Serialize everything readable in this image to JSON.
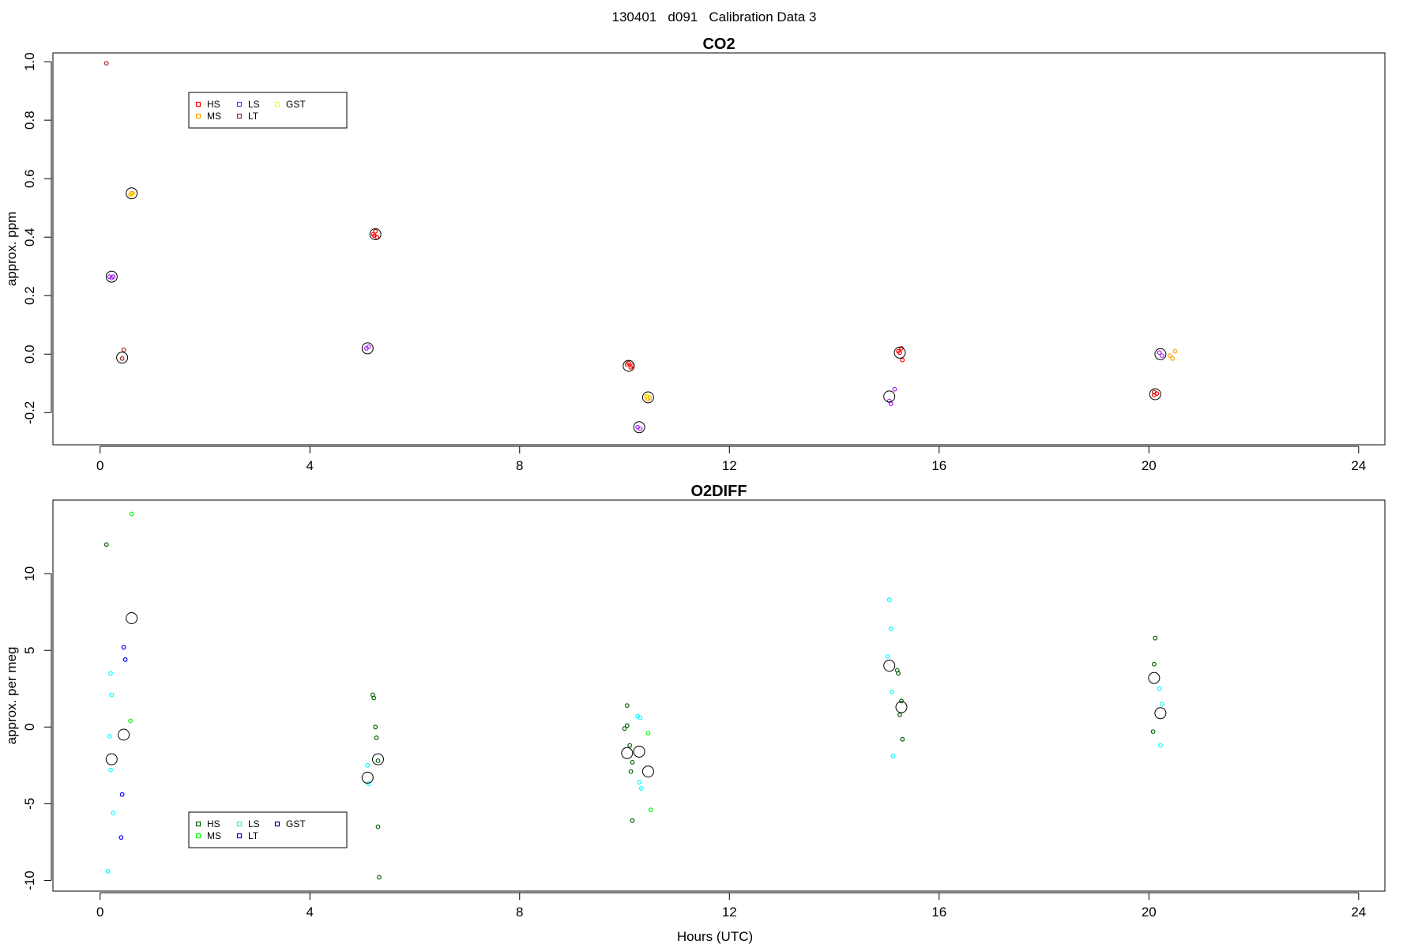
{
  "figure_title": "130401   d091   Calibration Data 3",
  "chart_data": [
    {
      "type": "scatter",
      "title": "CO2",
      "xlabel": "",
      "ylabel": "approx. ppm",
      "xlim": [
        -0.9,
        24.5
      ],
      "ylim": [
        -0.31,
        1.03
      ],
      "xticks": [
        0,
        4,
        8,
        12,
        16,
        20,
        24
      ],
      "yticks": [
        -0.2,
        0.0,
        0.2,
        0.4,
        0.6,
        0.8,
        1.0
      ],
      "ytick_labels": [
        "-0.2",
        "0.0",
        "0.2",
        "0.4",
        "0.6",
        "0.8",
        "1.0"
      ],
      "legend": {
        "placement": "top-left",
        "entries": [
          {
            "name": "HS",
            "color": "#ff0000"
          },
          {
            "name": "MS",
            "color": "#ffa500"
          },
          {
            "name": "LS",
            "color": "#a020f0"
          },
          {
            "name": "LT",
            "color": "#b22222"
          },
          {
            "name": "GST",
            "color": "#ffff00"
          }
        ]
      },
      "series": [
        {
          "name": "HS",
          "color": "#ff0000",
          "points": [
            [
              5.21,
              0.41
            ],
            [
              5.25,
              0.42
            ],
            [
              5.28,
              0.4
            ],
            [
              5.23,
              0.405
            ],
            [
              10.05,
              -0.035
            ],
            [
              10.12,
              -0.045
            ],
            [
              10.08,
              -0.03
            ],
            [
              10.15,
              -0.04
            ],
            [
              15.25,
              0.005
            ],
            [
              15.28,
              0.02
            ],
            [
              15.3,
              -0.02
            ],
            [
              15.22,
              0.01
            ],
            [
              20.1,
              -0.14
            ],
            [
              20.15,
              -0.135
            ]
          ]
        },
        {
          "name": "MS",
          "color": "#ffa500",
          "points": [
            [
              0.58,
              0.545
            ],
            [
              0.6,
              0.55
            ],
            [
              0.62,
              0.55
            ],
            [
              10.42,
              -0.145
            ],
            [
              10.45,
              -0.155
            ],
            [
              10.48,
              -0.15
            ],
            [
              20.4,
              -0.005
            ],
            [
              20.45,
              -0.015
            ],
            [
              20.5,
              0.01
            ]
          ]
        },
        {
          "name": "LS",
          "color": "#a020f0",
          "points": [
            [
              0.18,
              0.265
            ],
            [
              0.22,
              0.26
            ],
            [
              0.25,
              0.265
            ],
            [
              5.08,
              0.02
            ],
            [
              5.12,
              0.025
            ],
            [
              10.25,
              -0.25
            ],
            [
              10.3,
              -0.255
            ],
            [
              15.05,
              -0.16
            ],
            [
              15.08,
              -0.17
            ],
            [
              15.15,
              -0.12
            ],
            [
              20.2,
              0.005
            ],
            [
              20.25,
              -0.005
            ]
          ]
        },
        {
          "name": "LT",
          "color": "#b22222",
          "points": [
            [
              0.12,
              0.995
            ],
            [
              0.42,
              -0.015
            ],
            [
              0.45,
              0.015
            ],
            [
              20.1,
              -0.13
            ]
          ]
        },
        {
          "name": "GST",
          "color": "#ffff00",
          "points": [
            [
              0.6,
              0.545
            ],
            [
              10.45,
              -0.145
            ]
          ]
        },
        {
          "name": "mean",
          "color": "#000000",
          "points": [
            [
              0.22,
              0.265
            ],
            [
              0.42,
              -0.012
            ],
            [
              0.6,
              0.55
            ],
            [
              5.1,
              0.02
            ],
            [
              5.25,
              0.41
            ],
            [
              10.08,
              -0.04
            ],
            [
              10.28,
              -0.25
            ],
            [
              10.45,
              -0.148
            ],
            [
              15.05,
              -0.145
            ],
            [
              15.25,
              0.005
            ],
            [
              20.12,
              -0.137
            ],
            [
              20.22,
              0.0
            ]
          ]
        }
      ]
    },
    {
      "type": "scatter",
      "title": "O2DIFF",
      "xlabel": "Hours (UTC)",
      "ylabel": "approx. per meg",
      "xlim": [
        -0.9,
        24.5
      ],
      "ylim": [
        -10.7,
        14.8
      ],
      "xticks": [
        0,
        4,
        8,
        12,
        16,
        20,
        24
      ],
      "yticks": [
        -10,
        -5,
        0,
        5,
        10
      ],
      "ytick_labels": [
        "-10",
        "-5",
        "0",
        "5",
        "10"
      ],
      "legend": {
        "placement": "bottom-left",
        "entries": [
          {
            "name": "HS",
            "color": "#006400"
          },
          {
            "name": "MS",
            "color": "#00ff00"
          },
          {
            "name": "LS",
            "color": "#00ffff"
          },
          {
            "name": "LT",
            "color": "#0000ff"
          },
          {
            "name": "GST",
            "color": "#00008b"
          }
        ]
      },
      "series": [
        {
          "name": "HS",
          "color": "#006400",
          "points": [
            [
              0.12,
              11.9
            ],
            [
              5.2,
              2.1
            ],
            [
              5.22,
              1.9
            ],
            [
              5.25,
              0.0
            ],
            [
              5.27,
              -0.7
            ],
            [
              5.3,
              -2.2
            ],
            [
              5.3,
              -6.5
            ],
            [
              5.32,
              -9.8
            ],
            [
              10.0,
              -0.1
            ],
            [
              10.05,
              1.4
            ],
            [
              10.05,
              0.1
            ],
            [
              10.1,
              -1.2
            ],
            [
              10.12,
              -2.9
            ],
            [
              10.15,
              -2.3
            ],
            [
              10.15,
              -6.1
            ],
            [
              15.2,
              3.7
            ],
            [
              15.22,
              3.5
            ],
            [
              15.28,
              1.7
            ],
            [
              15.25,
              0.8
            ],
            [
              15.3,
              -0.8
            ],
            [
              20.12,
              5.8
            ],
            [
              20.1,
              4.1
            ],
            [
              20.08,
              -0.3
            ]
          ]
        },
        {
          "name": "MS",
          "color": "#00ff00",
          "points": [
            [
              0.6,
              13.9
            ],
            [
              0.58,
              0.4
            ],
            [
              10.45,
              -0.4
            ],
            [
              10.5,
              -5.4
            ]
          ]
        },
        {
          "name": "LS",
          "color": "#00ffff",
          "points": [
            [
              0.2,
              3.5
            ],
            [
              0.22,
              2.1
            ],
            [
              0.18,
              -0.6
            ],
            [
              0.2,
              -2.8
            ],
            [
              0.25,
              -5.6
            ],
            [
              0.15,
              -9.4
            ],
            [
              5.1,
              -2.5
            ],
            [
              5.12,
              -3.7
            ],
            [
              10.25,
              0.7
            ],
            [
              10.3,
              0.6
            ],
            [
              10.28,
              -3.6
            ],
            [
              10.32,
              -4.0
            ],
            [
              15.05,
              8.3
            ],
            [
              15.08,
              6.4
            ],
            [
              15.02,
              4.6
            ],
            [
              15.1,
              2.3
            ],
            [
              15.12,
              -1.9
            ],
            [
              20.2,
              2.5
            ],
            [
              20.25,
              1.5
            ],
            [
              20.22,
              -1.2
            ]
          ]
        },
        {
          "name": "LT",
          "color": "#0000ff",
          "points": [
            [
              0.45,
              5.2
            ],
            [
              0.48,
              4.4
            ],
            [
              0.42,
              -4.4
            ],
            [
              0.4,
              -7.2
            ]
          ]
        },
        {
          "name": "GST",
          "color": "#00008b",
          "points": []
        },
        {
          "name": "mean",
          "color": "#000000",
          "points": [
            [
              0.22,
              -2.1
            ],
            [
              0.45,
              -0.5
            ],
            [
              0.6,
              7.1
            ],
            [
              5.1,
              -3.3
            ],
            [
              5.3,
              -2.1
            ],
            [
              10.05,
              -1.7
            ],
            [
              10.28,
              -1.6
            ],
            [
              10.45,
              -2.9
            ],
            [
              15.05,
              4.0
            ],
            [
              15.28,
              1.3
            ],
            [
              20.1,
              3.2
            ],
            [
              20.22,
              0.9
            ]
          ]
        }
      ]
    }
  ]
}
